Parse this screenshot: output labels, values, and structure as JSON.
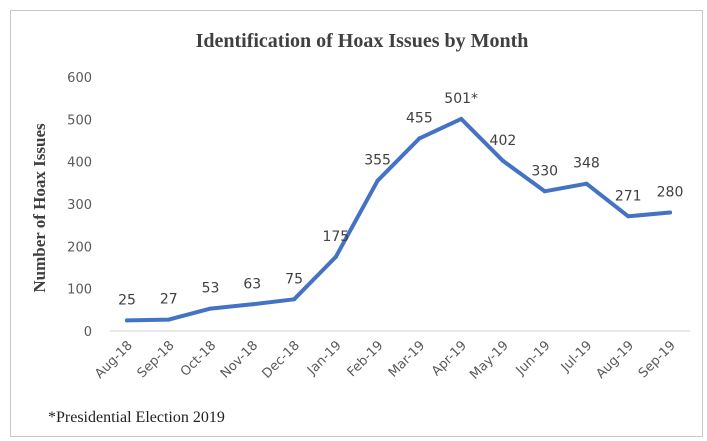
{
  "chart_data": {
    "type": "line",
    "title": "Identification of Hoax Issues by Month",
    "xlabel": "",
    "ylabel": "Number of Hoax Issues",
    "ylim": [
      0,
      600
    ],
    "yticks": [
      "0",
      "100",
      "200",
      "300",
      "400",
      "500",
      "600"
    ],
    "grid": false,
    "categories": [
      "Aug-18",
      "Sep-18",
      "Oct-18",
      "Nov-18",
      "Dec-18",
      "Jan-19",
      "Feb-19",
      "Mar-19",
      "Apr-19",
      "May-19",
      "Jun-19",
      "Jul-19",
      "Aug-19",
      "Sep-19"
    ],
    "values": [
      25,
      27,
      53,
      63,
      75,
      175,
      355,
      455,
      501,
      402,
      330,
      348,
      271,
      280
    ],
    "data_labels": [
      "25",
      "27",
      "53",
      "63",
      "75",
      "175",
      "355",
      "455",
      "501*",
      "402",
      "330",
      "348",
      "271",
      "280"
    ],
    "line_color": "#4472c4",
    "footnote": "*Presidential Election 2019"
  }
}
